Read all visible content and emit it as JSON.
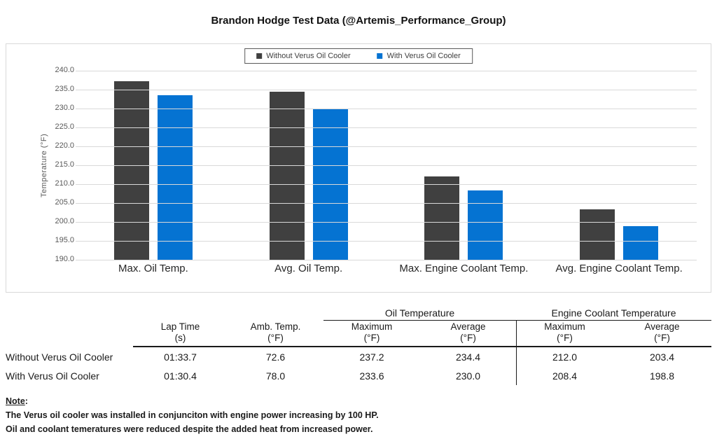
{
  "title": "Brandon Hodge Test Data (@Artemis_Performance_Group)",
  "colors": {
    "series_without": "#404040",
    "series_with": "#0573d2",
    "gridline": "#d9d9d9",
    "axis_text": "#595959",
    "chart_border": "#d9d9d9",
    "table_line": "#1a1a1a"
  },
  "chart_data": {
    "type": "bar",
    "title": "Brandon Hodge Test Data (@Artemis_Performance_Group)",
    "categories": [
      "Max. Oil Temp.",
      "Avg. Oil Temp.",
      "Max. Engine Coolant Temp.",
      "Avg. Engine Coolant Temp."
    ],
    "series": [
      {
        "name": "Without Verus Oil Cooler",
        "color": "#404040",
        "values": [
          237.2,
          234.4,
          212.0,
          203.4
        ]
      },
      {
        "name": "With Verus Oil Cooler",
        "color": "#0573d2",
        "values": [
          233.6,
          230.0,
          208.4,
          198.8
        ]
      }
    ],
    "xlabel": "",
    "ylabel": "Temperature (°F)",
    "ylim": [
      190.0,
      240.0
    ],
    "ytick_step": 5.0,
    "yticks": [
      "240.0",
      "235.0",
      "230.0",
      "225.0",
      "220.0",
      "215.0",
      "210.0",
      "205.0",
      "200.0",
      "195.0",
      "190.0"
    ],
    "grid": true,
    "legend_position": "top-center"
  },
  "table": {
    "group_headers": [
      {
        "label": "Oil Temperature"
      },
      {
        "label": "Engine Coolant Temperature"
      }
    ],
    "columns": [
      {
        "line1": "Lap Time",
        "line2": "(s)"
      },
      {
        "line1": "Amb. Temp.",
        "line2": "(°F)"
      },
      {
        "line1": "Maximum",
        "line2": "(°F)"
      },
      {
        "line1": "Average",
        "line2": "(°F)"
      },
      {
        "line1": "Maximum",
        "line2": "(°F)"
      },
      {
        "line1": "Average",
        "line2": "(°F)"
      }
    ],
    "rows": [
      {
        "label": "Without Verus Oil Cooler",
        "values": [
          "01:33.7",
          "72.6",
          "237.2",
          "234.4",
          "212.0",
          "203.4"
        ]
      },
      {
        "label": "With Verus Oil Cooler",
        "values": [
          "01:30.4",
          "78.0",
          "233.6",
          "230.0",
          "208.4",
          "198.8"
        ]
      }
    ]
  },
  "note": {
    "heading": "Note",
    "colon": ":",
    "lines": [
      "The Verus oil cooler was installed in conjunciton with engine power increasing by 100 HP.",
      "Oil and coolant temeratures were reduced despite the added heat from increased power."
    ]
  }
}
